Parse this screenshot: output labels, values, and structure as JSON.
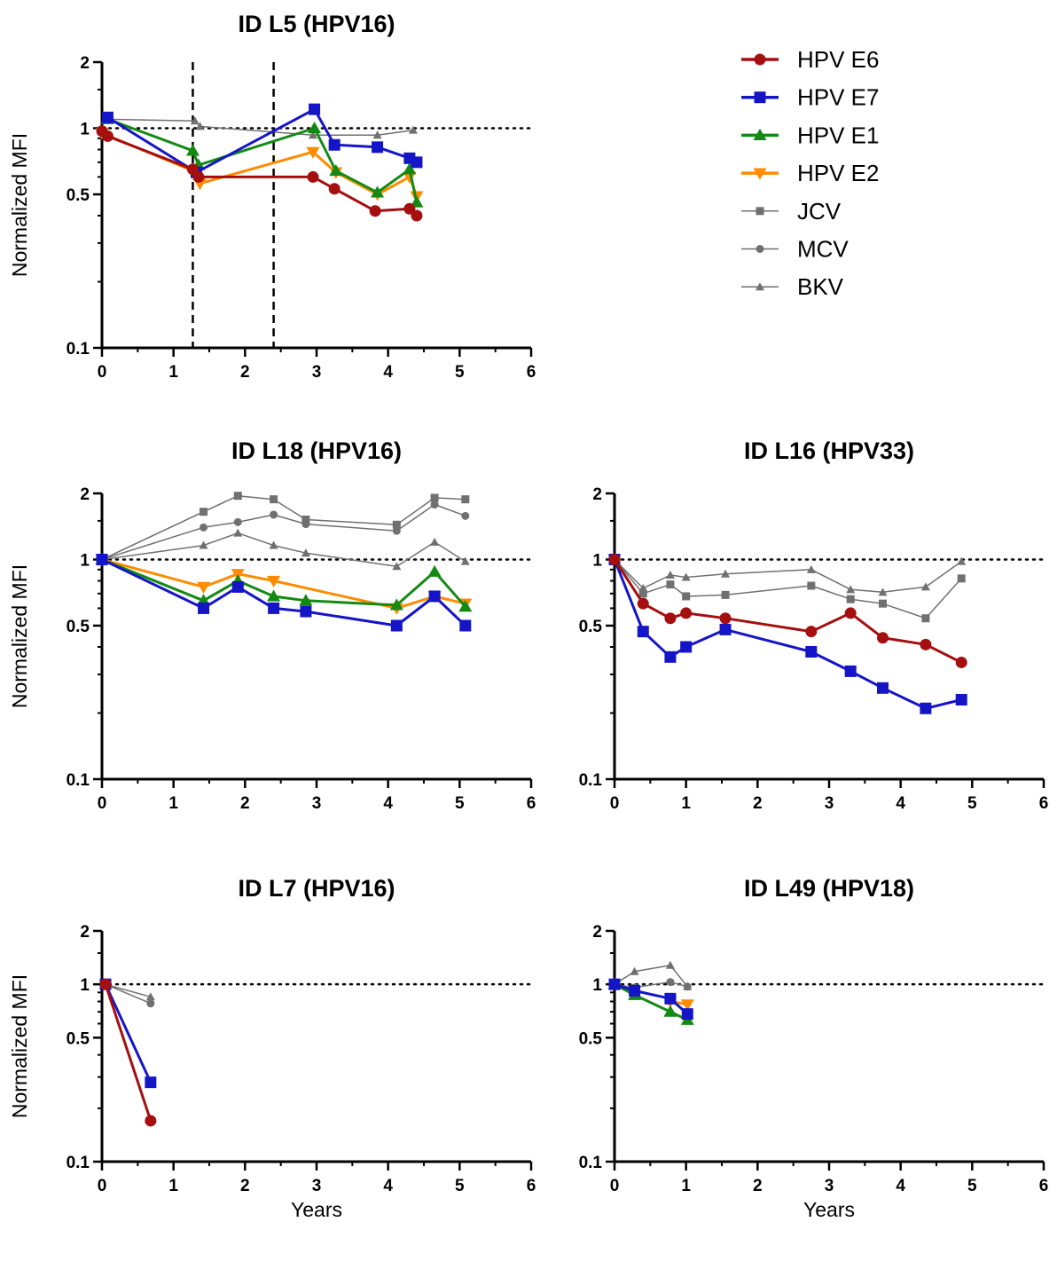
{
  "chart_data": [
    {
      "type": "line",
      "title": "ID L5  (HPV16)",
      "xlabel": "",
      "ylabel": "Normalized MFI",
      "yscale": "log",
      "xlim": [
        0,
        6
      ],
      "ylim": [
        0.1,
        2
      ],
      "xticks": [
        "0",
        "1",
        "2",
        "3",
        "4",
        "5",
        "6"
      ],
      "yticks": [
        "0.1",
        "0.5",
        "1",
        "2"
      ],
      "reference_line": 1,
      "vertical_lines": [
        1.27,
        2.4
      ],
      "series": [
        {
          "name": "HPV E6",
          "color": "#a50f0f",
          "marker": "circle",
          "x": [
            0,
            0.08,
            1.27,
            1.35,
            2.95,
            3.25,
            3.82,
            4.3,
            4.4
          ],
          "y": [
            0.97,
            0.92,
            0.65,
            0.6,
            0.6,
            0.53,
            0.42,
            0.43,
            0.4
          ]
        },
        {
          "name": "HPV E7",
          "color": "#1515c8",
          "marker": "square",
          "x": [
            0.08,
            1.32,
            2.97,
            3.25,
            3.85,
            4.3,
            4.4
          ],
          "y": [
            1.12,
            0.63,
            1.22,
            0.84,
            0.82,
            0.73,
            0.7
          ]
        },
        {
          "name": "HPV E1",
          "color": "#138a13",
          "marker": "triangle-up",
          "x": [
            0.08,
            1.27,
            1.35,
            2.97,
            3.27,
            3.85,
            4.3,
            4.4
          ],
          "y": [
            1.1,
            0.79,
            0.68,
            1.0,
            0.64,
            0.51,
            0.65,
            0.46
          ]
        },
        {
          "name": "HPV E2",
          "color": "#ff8c00",
          "marker": "triangle-down",
          "x": [
            0,
            1.27,
            1.37,
            2.95,
            3.27,
            3.85,
            4.3,
            4.4
          ],
          "y": [
            0.95,
            0.64,
            0.56,
            0.78,
            0.63,
            0.5,
            0.6,
            0.49
          ]
        },
        {
          "name": "JCV",
          "color": "#707070",
          "marker": "square-small",
          "x": [],
          "y": []
        },
        {
          "name": "MCV",
          "color": "#707070",
          "marker": "circle-small",
          "x": [],
          "y": []
        },
        {
          "name": "BKV",
          "color": "#707070",
          "marker": "triangle-small",
          "x": [
            0.05,
            1.3,
            1.37,
            2.95,
            3.85,
            4.35
          ],
          "y": [
            1.1,
            1.08,
            1.02,
            0.93,
            0.93,
            0.98
          ]
        }
      ]
    },
    {
      "type": "line",
      "title": "ID L18  (HPV16)",
      "xlabel": "",
      "ylabel": "Normalized MFI",
      "yscale": "log",
      "xlim": [
        0,
        6
      ],
      "ylim": [
        0.1,
        2
      ],
      "xticks": [
        "0",
        "1",
        "2",
        "3",
        "4",
        "5",
        "6"
      ],
      "yticks": [
        "0.1",
        "0.5",
        "1",
        "2"
      ],
      "reference_line": 1,
      "vertical_lines": [],
      "series": [
        {
          "name": "HPV E6",
          "color": "#a50f0f",
          "marker": "circle",
          "x": [],
          "y": []
        },
        {
          "name": "HPV E7",
          "color": "#1515c8",
          "marker": "square",
          "x": [
            0,
            1.42,
            1.9,
            2.4,
            2.85,
            4.12,
            4.65,
            5.08
          ],
          "y": [
            1.0,
            0.6,
            0.75,
            0.6,
            0.58,
            0.5,
            0.68,
            0.5
          ]
        },
        {
          "name": "HPV E1",
          "color": "#138a13",
          "marker": "triangle-up",
          "x": [
            0,
            1.42,
            1.9,
            2.4,
            2.85,
            4.12,
            4.65,
            5.08
          ],
          "y": [
            1.0,
            0.65,
            0.8,
            0.68,
            0.65,
            0.62,
            0.88,
            0.61
          ]
        },
        {
          "name": "HPV E2",
          "color": "#ff8c00",
          "marker": "triangle-down",
          "x": [
            0,
            1.42,
            1.9,
            2.4,
            4.12,
            4.65,
            5.08
          ],
          "y": [
            1.0,
            0.75,
            0.86,
            0.8,
            0.6,
            0.68,
            0.63
          ]
        },
        {
          "name": "JCV",
          "color": "#707070",
          "marker": "square-small",
          "x": [
            0,
            1.42,
            1.9,
            2.4,
            2.85,
            4.12,
            4.65,
            5.08
          ],
          "y": [
            1.0,
            1.65,
            1.95,
            1.88,
            1.52,
            1.44,
            1.91,
            1.88
          ]
        },
        {
          "name": "MCV",
          "color": "#707070",
          "marker": "circle-small",
          "x": [
            0,
            1.42,
            1.9,
            2.4,
            2.85,
            4.12,
            4.65,
            5.08
          ],
          "y": [
            1.0,
            1.4,
            1.48,
            1.6,
            1.45,
            1.35,
            1.78,
            1.58
          ]
        },
        {
          "name": "BKV",
          "color": "#707070",
          "marker": "triangle-small",
          "x": [
            0,
            1.42,
            1.9,
            2.4,
            2.85,
            4.12,
            4.65,
            5.08
          ],
          "y": [
            1.0,
            1.16,
            1.32,
            1.16,
            1.07,
            0.93,
            1.2,
            0.98
          ]
        }
      ]
    },
    {
      "type": "line",
      "title": "ID L16  (HPV33)",
      "xlabel": "",
      "ylabel": "",
      "yscale": "log",
      "xlim": [
        0,
        6
      ],
      "ylim": [
        0.1,
        2
      ],
      "xticks": [
        "0",
        "1",
        "2",
        "3",
        "4",
        "5",
        "6"
      ],
      "yticks": [
        "0.1",
        "0.5",
        "1",
        "2"
      ],
      "reference_line": 1,
      "vertical_lines": [],
      "series": [
        {
          "name": "HPV E6",
          "color": "#a50f0f",
          "marker": "circle",
          "x": [
            0,
            0.4,
            0.78,
            1.0,
            1.55,
            2.75,
            3.3,
            3.75,
            4.35,
            4.85
          ],
          "y": [
            1.0,
            0.63,
            0.54,
            0.57,
            0.54,
            0.47,
            0.57,
            0.44,
            0.41,
            0.34
          ]
        },
        {
          "name": "HPV E7",
          "color": "#1515c8",
          "marker": "square",
          "x": [
            0,
            0.4,
            0.78,
            1.0,
            1.55,
            2.75,
            3.3,
            3.75,
            4.35,
            4.85
          ],
          "y": [
            1.0,
            0.47,
            0.36,
            0.4,
            0.48,
            0.38,
            0.31,
            0.26,
            0.21,
            0.23
          ]
        },
        {
          "name": "HPV E1",
          "color": "#138a13",
          "marker": "triangle-up",
          "x": [],
          "y": []
        },
        {
          "name": "HPV E2",
          "color": "#ff8c00",
          "marker": "triangle-down",
          "x": [],
          "y": []
        },
        {
          "name": "JCV",
          "color": "#707070",
          "marker": "square-small",
          "x": [
            0,
            0.4,
            0.78,
            1.0,
            1.55,
            2.75,
            3.3,
            3.75,
            4.35,
            4.85
          ],
          "y": [
            1.0,
            0.7,
            0.77,
            0.68,
            0.69,
            0.76,
            0.66,
            0.63,
            0.54,
            0.82
          ]
        },
        {
          "name": "MCV",
          "color": "#707070",
          "marker": "circle-small",
          "x": [],
          "y": []
        },
        {
          "name": "BKV",
          "color": "#707070",
          "marker": "triangle-small",
          "x": [
            0,
            0.4,
            0.78,
            1.0,
            1.55,
            2.75,
            3.3,
            3.75,
            4.35,
            4.85
          ],
          "y": [
            1.0,
            0.74,
            0.85,
            0.83,
            0.86,
            0.9,
            0.73,
            0.71,
            0.75,
            0.98
          ]
        }
      ]
    },
    {
      "type": "line",
      "title": "ID L7  (HPV16)",
      "xlabel": "Years",
      "ylabel": "Normalized MFI",
      "yscale": "log",
      "xlim": [
        0,
        6
      ],
      "ylim": [
        0.1,
        2
      ],
      "xticks": [
        "0",
        "1",
        "2",
        "3",
        "4",
        "5",
        "6"
      ],
      "yticks": [
        "0.1",
        "0.5",
        "1",
        "2"
      ],
      "reference_line": 1,
      "vertical_lines": [],
      "series": [
        {
          "name": "HPV E6",
          "color": "#a50f0f",
          "marker": "circle",
          "x": [
            0.05,
            0.68
          ],
          "y": [
            1.0,
            0.17
          ]
        },
        {
          "name": "HPV E7",
          "color": "#1515c8",
          "marker": "square",
          "x": [
            0.05,
            0.68
          ],
          "y": [
            1.0,
            0.28
          ]
        },
        {
          "name": "HPV E1",
          "color": "#138a13",
          "marker": "triangle-up",
          "x": [],
          "y": []
        },
        {
          "name": "HPV E2",
          "color": "#ff8c00",
          "marker": "triangle-down",
          "x": [],
          "y": []
        },
        {
          "name": "JCV",
          "color": "#707070",
          "marker": "square-small",
          "x": [],
          "y": []
        },
        {
          "name": "MCV",
          "color": "#707070",
          "marker": "circle-small",
          "x": [
            0.05,
            0.68
          ],
          "y": [
            1.0,
            0.78
          ]
        },
        {
          "name": "BKV",
          "color": "#707070",
          "marker": "triangle-small",
          "x": [
            0.05,
            0.68
          ],
          "y": [
            1.0,
            0.85
          ]
        }
      ]
    },
    {
      "type": "line",
      "title": "ID L49  (HPV18)",
      "xlabel": "Years",
      "ylabel": "",
      "yscale": "log",
      "xlim": [
        0,
        6
      ],
      "ylim": [
        0.1,
        2
      ],
      "xticks": [
        "0",
        "1",
        "2",
        "3",
        "4",
        "5",
        "6"
      ],
      "yticks": [
        "0.1",
        "0.5",
        "1",
        "2"
      ],
      "reference_line": 1,
      "vertical_lines": [],
      "series": [
        {
          "name": "HPV E6",
          "color": "#a50f0f",
          "marker": "circle",
          "x": [],
          "y": []
        },
        {
          "name": "HPV E7",
          "color": "#1515c8",
          "marker": "square",
          "x": [
            0,
            0.28,
            0.78,
            1.02
          ],
          "y": [
            1.0,
            0.92,
            0.83,
            0.68
          ]
        },
        {
          "name": "HPV E1",
          "color": "#138a13",
          "marker": "triangle-up",
          "x": [
            0,
            0.28,
            0.78,
            1.02
          ],
          "y": [
            1.0,
            0.87,
            0.7,
            0.63
          ]
        },
        {
          "name": "HPV E2",
          "color": "#ff8c00",
          "marker": "triangle-down",
          "x": [
            0.78,
            1.02
          ],
          "y": [
            0.8,
            0.77
          ]
        },
        {
          "name": "JCV",
          "color": "#707070",
          "marker": "square-small",
          "x": [],
          "y": []
        },
        {
          "name": "MCV",
          "color": "#707070",
          "marker": "circle-small",
          "x": [
            0,
            0.28,
            0.78,
            1.02
          ],
          "y": [
            1.0,
            0.96,
            1.03,
            0.97
          ]
        },
        {
          "name": "BKV",
          "color": "#707070",
          "marker": "triangle-small",
          "x": [
            0,
            0.28,
            0.78,
            1.02
          ],
          "y": [
            1.0,
            1.18,
            1.28,
            0.97
          ]
        }
      ]
    }
  ],
  "legend": {
    "placement": "top-right",
    "items": [
      {
        "label": "HPV E6",
        "color": "#a50f0f",
        "marker": "circle",
        "thick": true
      },
      {
        "label": "HPV E7",
        "color": "#1515c8",
        "marker": "square",
        "thick": true
      },
      {
        "label": "HPV E1",
        "color": "#138a13",
        "marker": "triangle-up",
        "thick": true
      },
      {
        "label": "HPV E2",
        "color": "#ff8c00",
        "marker": "triangle-down",
        "thick": true
      },
      {
        "label": "JCV",
        "color": "#707070",
        "marker": "square-small",
        "thick": false
      },
      {
        "label": "MCV",
        "color": "#707070",
        "marker": "circle-small",
        "thick": false
      },
      {
        "label": "BKV",
        "color": "#707070",
        "marker": "triangle-small",
        "thick": false
      }
    ]
  }
}
